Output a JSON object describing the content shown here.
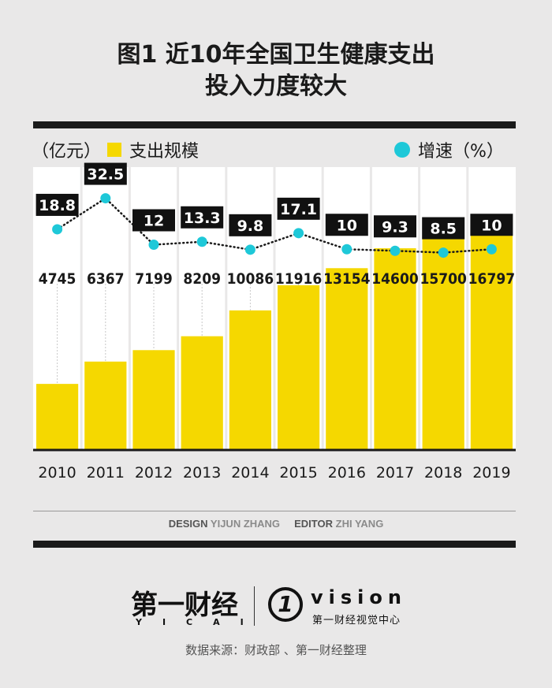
{
  "title_line1": "图1 近10年全国卫生健康支出",
  "title_line2": "投入力度较大",
  "legend": {
    "bar_unit": "（亿元）",
    "bar_label": "支出规模",
    "line_label": "增速（%）"
  },
  "colors": {
    "bar": "#f5d800",
    "dot": "#1ec8d8",
    "label_box": "#111111"
  },
  "chart_data": {
    "type": "bar",
    "categories": [
      "2010",
      "2011",
      "2012",
      "2013",
      "2014",
      "2015",
      "2016",
      "2017",
      "2018",
      "2019"
    ],
    "series": [
      {
        "name": "支出规模",
        "unit": "亿元",
        "values": [
          4745,
          6367,
          7199,
          8209,
          10086,
          11916,
          13154,
          14600,
          15700,
          16797
        ]
      },
      {
        "name": "增速",
        "unit": "%",
        "type": "line",
        "values": [
          18.8,
          32.5,
          12,
          13.3,
          9.8,
          17.1,
          10,
          9.3,
          8.5,
          10
        ]
      }
    ],
    "bar_labels": [
      "4745",
      "6367",
      "7199",
      "8209",
      "10086",
      "11916",
      "13154",
      "14600",
      "15700",
      "16797"
    ],
    "line_labels": [
      "18.8",
      "32.5",
      "12",
      "13.3",
      "9.8",
      "17.1",
      "10",
      "9.3",
      "8.5",
      "10"
    ]
  },
  "credits": {
    "design_key": "DESIGN",
    "design_val": "YIJUN ZHANG",
    "editor_key": "EDITOR",
    "editor_val": "ZHI YANG"
  },
  "logos": {
    "yicai_cn": "第一财经",
    "yicai_en": "YICAI",
    "vision_mark": "1",
    "vision_text": "vision",
    "vision_sub": "第一财经视觉中心"
  },
  "source": "数据来源：财政部 、第一财经整理"
}
